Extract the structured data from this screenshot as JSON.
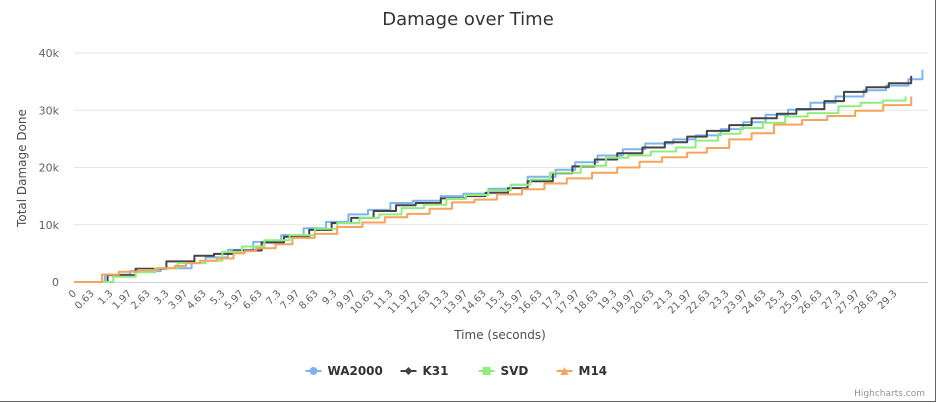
{
  "chart_data": {
    "type": "line",
    "step": true,
    "title": "Damage over Time",
    "xlabel": "Time (seconds)",
    "ylabel": "Total Damage Done",
    "xlim": [
      0,
      30.5
    ],
    "ylim": [
      0,
      40000
    ],
    "y_ticks": [
      {
        "value": 0,
        "label": "0"
      },
      {
        "value": 10000,
        "label": "10k"
      },
      {
        "value": 20000,
        "label": "20k"
      },
      {
        "value": 30000,
        "label": "30k"
      },
      {
        "value": 40000,
        "label": "40k"
      }
    ],
    "x_tick_labels": [
      "0",
      "0.63",
      "1.3",
      "1.97",
      "2.63",
      "3.3",
      "3.97",
      "4.63",
      "5.3",
      "5.97",
      "6.63",
      "7.3",
      "7.97",
      "8.63",
      "9.3",
      "9.97",
      "10.63",
      "11.3",
      "11.97",
      "12.63",
      "13.3",
      "13.97",
      "14.63",
      "15.3",
      "15.97",
      "16.63",
      "17.3",
      "17.97",
      "18.63",
      "19.3",
      "19.97",
      "20.63",
      "21.3",
      "21.97",
      "22.63",
      "23.3",
      "23.97",
      "24.63",
      "25.3",
      "25.97",
      "26.63",
      "27.3",
      "27.97",
      "28.63",
      "29.3"
    ],
    "legend_position": "bottom-center",
    "grid": true,
    "series": [
      {
        "name": "WA2000",
        "color": "#7cb5ec",
        "marker": "circle",
        "x": [
          0,
          1.1,
          2.0,
          3.1,
          4.2,
          4.7,
          5.5,
          6.4,
          7.4,
          8.2,
          9.0,
          9.8,
          10.5,
          11.3,
          12.1,
          13.1,
          13.9,
          14.8,
          15.6,
          16.2,
          17.2,
          17.9,
          18.7,
          19.6,
          20.4,
          21.4,
          22.2,
          23.1,
          23.9,
          24.7,
          25.5,
          26.3,
          27.2,
          28.2,
          29.0,
          29.8,
          30.3
        ],
        "values": [
          0,
          1300,
          1900,
          2400,
          3300,
          4300,
          5600,
          7000,
          8200,
          9400,
          10500,
          11800,
          12600,
          13800,
          14200,
          15000,
          15400,
          16300,
          17000,
          18400,
          19600,
          20900,
          22100,
          23200,
          24200,
          24900,
          25600,
          26700,
          27900,
          29200,
          30100,
          31300,
          32400,
          33500,
          34300,
          35400,
          37100
        ]
      },
      {
        "name": "K31",
        "color": "#434348",
        "marker": "diamond",
        "x": [
          0,
          1.2,
          2.2,
          3.3,
          4.3,
          5.0,
          5.7,
          6.7,
          7.5,
          8.4,
          9.2,
          9.9,
          10.7,
          11.5,
          12.2,
          13.1,
          14.0,
          14.7,
          15.5,
          16.2,
          17.1,
          17.8,
          18.6,
          19.4,
          20.3,
          21.1,
          21.9,
          22.6,
          23.4,
          24.2,
          25.1,
          25.8,
          26.8,
          27.5,
          28.3,
          29.1,
          29.9
        ],
        "values": [
          0,
          1200,
          2300,
          3600,
          4600,
          4900,
          5500,
          6900,
          7900,
          9100,
          10300,
          11200,
          12400,
          13400,
          13800,
          14600,
          15000,
          15600,
          16400,
          17600,
          19000,
          20200,
          21400,
          22500,
          23500,
          24400,
          25400,
          26400,
          27400,
          28600,
          29400,
          30200,
          31600,
          33200,
          34000,
          34700,
          36000
        ]
      },
      {
        "name": "SVD",
        "color": "#90ed7d",
        "marker": "square",
        "x": [
          0,
          1.4,
          2.2,
          2.9,
          3.7,
          4.7,
          5.3,
          6.0,
          6.8,
          7.7,
          8.6,
          9.4,
          10.2,
          10.9,
          11.7,
          12.5,
          13.3,
          14.0,
          14.8,
          15.6,
          16.3,
          17.0,
          18.1,
          19.0,
          19.8,
          20.6,
          21.5,
          22.2,
          23.0,
          23.8,
          24.6,
          25.4,
          26.2,
          27.3,
          28.1,
          28.9,
          29.7
        ],
        "values": [
          0,
          900,
          1700,
          2400,
          3300,
          3700,
          5300,
          6200,
          7300,
          8200,
          9300,
          10300,
          11200,
          11800,
          12900,
          13500,
          14500,
          15200,
          16000,
          17000,
          17900,
          19100,
          20300,
          21700,
          22100,
          22800,
          23500,
          24700,
          25900,
          26900,
          27800,
          28900,
          29500,
          30700,
          31300,
          31700,
          32400
        ]
      },
      {
        "name": "M14",
        "color": "#f7a35c",
        "marker": "triangle",
        "x": [
          0,
          1.0,
          1.6,
          2.3,
          3.0,
          3.6,
          4.0,
          4.5,
          5.1,
          5.7,
          6.1,
          6.5,
          7.2,
          7.8,
          8.6,
          9.4,
          10.3,
          11.1,
          11.9,
          12.7,
          13.5,
          14.3,
          15.1,
          16.0,
          16.8,
          17.6,
          18.5,
          19.4,
          20.2,
          21.0,
          21.9,
          22.6,
          23.4,
          24.2,
          25.0,
          26.0,
          26.9,
          27.9,
          28.9,
          29.9
        ],
        "values": [
          0,
          1300,
          1800,
          2100,
          2400,
          2800,
          3300,
          3700,
          4100,
          5000,
          5400,
          5900,
          6600,
          7700,
          8400,
          9600,
          10400,
          11300,
          11900,
          12800,
          13900,
          14400,
          15300,
          16200,
          17200,
          18100,
          19100,
          20000,
          21000,
          21800,
          22600,
          23400,
          24900,
          26000,
          27500,
          28300,
          29000,
          29900,
          30900,
          32400
        ]
      }
    ]
  },
  "credits": "Highcharts.com"
}
